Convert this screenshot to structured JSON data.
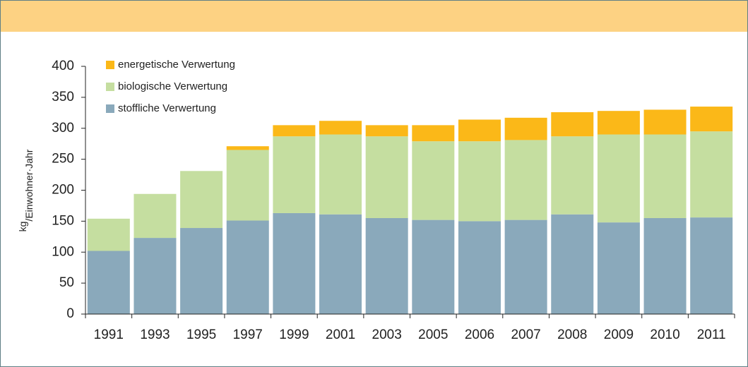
{
  "chart_data": {
    "type": "stacked_bar",
    "y_label": [
      "kg",
      "/Einwohner·Jahr"
    ],
    "categories": [
      "1991",
      "1993",
      "1995",
      "1997",
      "1999",
      "2001",
      "2003",
      "2005",
      "2006",
      "2007",
      "2008",
      "2009",
      "2010",
      "2011"
    ],
    "series": [
      {
        "name": "stoffliche Verwertung",
        "color": "#8aa9bb",
        "values": [
          102,
          123,
          139,
          151,
          163,
          161,
          155,
          152,
          150,
          152,
          161,
          148,
          155,
          156
        ]
      },
      {
        "name": "biologische Verwertung",
        "color": "#c5dea0",
        "values": [
          52,
          71,
          92,
          114,
          124,
          129,
          132,
          127,
          129,
          129,
          126,
          142,
          135,
          139
        ]
      },
      {
        "name": "energetische Verwertung",
        "color": "#fbb818",
        "values": [
          0,
          0,
          0,
          6,
          18,
          22,
          18,
          26,
          35,
          36,
          39,
          38,
          40,
          40
        ]
      }
    ],
    "ylim": [
      0,
      400
    ],
    "yticks": [
      0,
      50,
      100,
      150,
      200,
      250,
      300,
      350,
      400
    ],
    "legend": "upper left"
  }
}
